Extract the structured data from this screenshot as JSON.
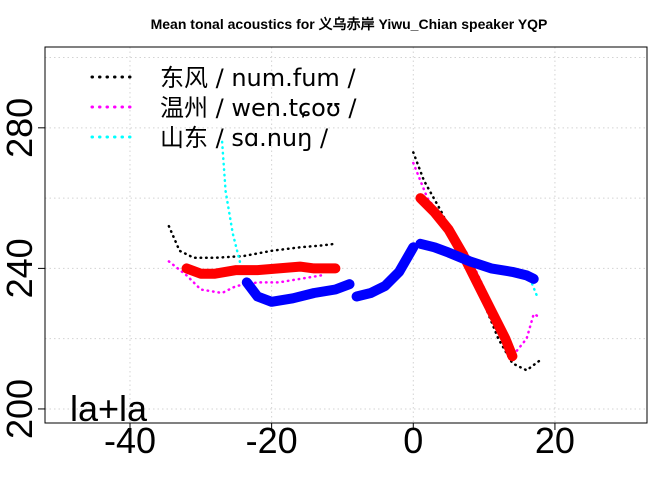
{
  "chart_data": {
    "type": "line",
    "title": "Mean tonal acoustics for 义乌赤岸 Yiwu_Chian speaker YQP",
    "xlabel": "",
    "ylabel": "",
    "xlim": [
      -52,
      33
    ],
    "ylim": [
      196,
      303
    ],
    "xticks": [
      -40,
      -20,
      0,
      20
    ],
    "xtick_labels": [
      "-40",
      "-20",
      "0",
      "20"
    ],
    "yticks": [
      200,
      240,
      280
    ],
    "ytick_labels": [
      "200",
      "240",
      "280"
    ],
    "grid": true,
    "legend_position": "top-left",
    "panel_label": "la+la",
    "series": [
      {
        "name": "东风 / num.fum /",
        "color": "#000000",
        "style": "dotted",
        "segments": [
          [
            [
              -34.5,
              252
            ],
            [
              -33,
              245
            ],
            [
              -31,
              243
            ],
            [
              -28,
              243
            ],
            [
              -24,
              243.5
            ],
            [
              -20,
              245
            ],
            [
              -16,
              246
            ],
            [
              -13,
              246.5
            ],
            [
              -11,
              247
            ]
          ],
          [
            [
              0,
              273
            ],
            [
              1.5,
              265
            ],
            [
              4,
              256
            ],
            [
              7,
              243
            ],
            [
              10,
              230
            ],
            [
              12,
              220
            ],
            [
              14,
              213
            ],
            [
              16,
              211
            ],
            [
              18,
              214
            ]
          ]
        ]
      },
      {
        "name": "温州 / wen.tɕoʊ /",
        "color": "#ff00ff",
        "style": "dotted",
        "segments": [
          [
            [
              -34.5,
              242
            ],
            [
              -32,
              238
            ],
            [
              -30,
              234
            ],
            [
              -27,
              233
            ],
            [
              -25,
              235
            ],
            [
              -22,
              236
            ],
            [
              -19,
              236
            ],
            [
              -16,
              237
            ],
            [
              -13,
              238
            ]
          ],
          [
            [
              0,
              270
            ],
            [
              2,
              260
            ],
            [
              5,
              252
            ],
            [
              8,
              243
            ],
            [
              11,
              230
            ],
            [
              14,
              215
            ],
            [
              16,
              220
            ],
            [
              17,
              227
            ],
            [
              18,
              226
            ]
          ]
        ]
      },
      {
        "name": "山东 / sɑ.nuŋ /",
        "color": "#00ffff",
        "style": "dotted",
        "segments": [
          [
            [
              -27,
              276
            ],
            [
              -26.5,
              262
            ],
            [
              -25.5,
              250
            ],
            [
              -24.5,
              242
            ],
            [
              -24,
              238
            ]
          ],
          [
            [
              16.5,
              237
            ],
            [
              17.5,
              232
            ]
          ]
        ]
      },
      {
        "name": "",
        "color": "#ff0000",
        "style": "thick",
        "segments": [
          [
            [
              -32,
              240
            ],
            [
              -30,
              238.5
            ],
            [
              -28,
              238.5
            ],
            [
              -25,
              239.5
            ],
            [
              -22,
              239.5
            ],
            [
              -19,
              240
            ],
            [
              -16,
              240.5
            ],
            [
              -14,
              240
            ],
            [
              -11,
              240
            ]
          ],
          [
            [
              1,
              260
            ],
            [
              3,
              256
            ],
            [
              5,
              251
            ],
            [
              7,
              244
            ],
            [
              9,
              236
            ],
            [
              11,
              228
            ],
            [
              13,
              220
            ],
            [
              14,
              215
            ]
          ]
        ]
      },
      {
        "name": "",
        "color": "#0000ff",
        "style": "thick",
        "segments": [
          [
            [
              -23.5,
              236
            ],
            [
              -22,
              232
            ],
            [
              -20,
              230.5
            ],
            [
              -17,
              231.5
            ],
            [
              -14,
              233
            ],
            [
              -11,
              234
            ],
            [
              -9,
              235.5
            ]
          ],
          [
            [
              -8,
              232
            ],
            [
              -6,
              233
            ],
            [
              -4,
              235
            ],
            [
              -2,
              239
            ],
            [
              0,
              246
            ]
          ],
          [
            [
              1,
              247
            ],
            [
              3,
              246
            ],
            [
              5,
              244.5
            ],
            [
              8,
              242
            ],
            [
              11,
              240
            ],
            [
              14,
              239
            ],
            [
              16,
              238
            ],
            [
              17,
              237
            ]
          ]
        ]
      }
    ]
  }
}
